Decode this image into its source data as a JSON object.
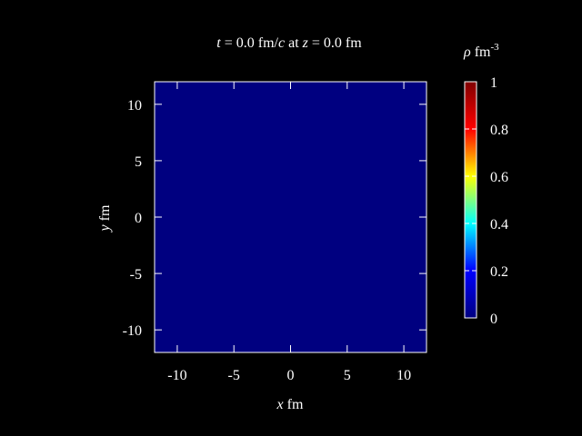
{
  "chart_data": {
    "type": "heatmap",
    "title": {
      "t_var": "t",
      "t_mid": " = 0.0 fm/",
      "c_var": "c",
      "at": " at ",
      "z_var": "z",
      "z_mid": " = 0.0 fm"
    },
    "xlabel": {
      "var": "x",
      "unit": " fm"
    },
    "ylabel": {
      "var": "y",
      "unit": " fm"
    },
    "xlim": [
      -12,
      12
    ],
    "ylim": [
      -12,
      12
    ],
    "xticks": [
      -10,
      -5,
      0,
      5,
      10
    ],
    "yticks": [
      -10,
      -5,
      0,
      5,
      10
    ],
    "field_value": 0,
    "colorbar": {
      "label": {
        "var": "ρ",
        "unit": " fm",
        "exp": "-3"
      },
      "range": [
        0,
        1
      ],
      "ticks": [
        "0",
        "0.2",
        "0.4",
        "0.6",
        "0.8",
        "1"
      ],
      "colormap": [
        "#000080",
        "#0000ff",
        "#00ffff",
        "#ffff00",
        "#ff0000",
        "#800000"
      ]
    },
    "grid": false
  }
}
